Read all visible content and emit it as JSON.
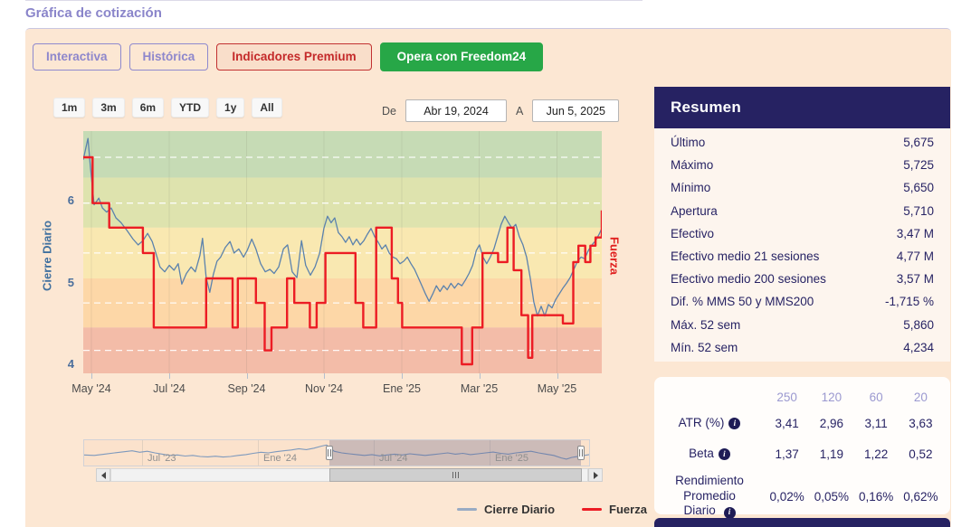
{
  "page": {
    "title": "Gráfica de cotización"
  },
  "toolbar": {
    "buttons": [
      {
        "label": "Interactiva"
      },
      {
        "label": "Histórica"
      },
      {
        "label": "Indicadores Premium"
      },
      {
        "label": "Opera con Freedom24"
      }
    ]
  },
  "chart": {
    "ranges": [
      "1m",
      "3m",
      "6m",
      "YTD",
      "1y",
      "All"
    ],
    "date": {
      "from_label": "De",
      "from": "Abr 19, 2024",
      "to_label": "A",
      "to": "Jun 5, 2025"
    },
    "y_axis_label": "Cierre Diario",
    "y2_axis_label": "Fuerza",
    "navigator_labels": [
      "Jul '23",
      "Ene '24",
      "Jul '24",
      "Ene '25"
    ]
  },
  "chart_data": {
    "type": "line",
    "title": "",
    "x_range": [
      "Abr 19, 2024",
      "Jun 5, 2025"
    ],
    "x_tick_labels": [
      "May '24",
      "Jul '24",
      "Sep '24",
      "Nov '24",
      "Ene '25",
      "Mar '25",
      "May '25"
    ],
    "ylim": [
      3.89,
      6.85
    ],
    "y_ticks": [
      6,
      5,
      4
    ],
    "grid": "dashed-horizontal",
    "legend_position": "bottom",
    "bands": [
      {
        "from": 6.28,
        "to": 6.85,
        "color": "#c6dbb5"
      },
      {
        "from": 5.67,
        "to": 6.28,
        "color": "#dee3ae"
      },
      {
        "from": 5.05,
        "to": 5.67,
        "color": "#f9e8b1"
      },
      {
        "from": 4.45,
        "to": 5.05,
        "color": "#fdd7a7"
      },
      {
        "from": 3.89,
        "to": 4.45,
        "color": "#f3bca8"
      }
    ],
    "dashed_levels": [
      6.53,
      5.97,
      5.36,
      4.75,
      4.17
    ],
    "series": [
      {
        "name": "Cierre Diario",
        "type": "line",
        "color": "#5b82ad",
        "points": [
          [
            0,
            6.5
          ],
          [
            0.009,
            6.76
          ],
          [
            0.014,
            6.4
          ],
          [
            0.021,
            5.95
          ],
          [
            0.03,
            6.03
          ],
          [
            0.037,
            5.91
          ],
          [
            0.045,
            5.86
          ],
          [
            0.054,
            5.91
          ],
          [
            0.063,
            5.79
          ],
          [
            0.073,
            5.73
          ],
          [
            0.084,
            5.64
          ],
          [
            0.096,
            5.53
          ],
          [
            0.106,
            5.46
          ],
          [
            0.115,
            5.51
          ],
          [
            0.124,
            5.6
          ],
          [
            0.133,
            5.5
          ],
          [
            0.14,
            5.36
          ],
          [
            0.148,
            5.19
          ],
          [
            0.157,
            5.13
          ],
          [
            0.166,
            5.21
          ],
          [
            0.175,
            5.15
          ],
          [
            0.183,
            5.23
          ],
          [
            0.19,
            4.98
          ],
          [
            0.199,
            5.11
          ],
          [
            0.208,
            5.19
          ],
          [
            0.216,
            5.13
          ],
          [
            0.225,
            5.33
          ],
          [
            0.23,
            5.54
          ],
          [
            0.237,
            5.06
          ],
          [
            0.244,
            4.88
          ],
          [
            0.251,
            5.1
          ],
          [
            0.258,
            5.26
          ],
          [
            0.265,
            5.31
          ],
          [
            0.274,
            5.43
          ],
          [
            0.283,
            5.5
          ],
          [
            0.291,
            5.36
          ],
          [
            0.3,
            5.41
          ],
          [
            0.309,
            5.31
          ],
          [
            0.316,
            5.39
          ],
          [
            0.325,
            5.53
          ],
          [
            0.333,
            5.41
          ],
          [
            0.342,
            5.23
          ],
          [
            0.351,
            5.13
          ],
          [
            0.36,
            5.16
          ],
          [
            0.368,
            5.11
          ],
          [
            0.377,
            5.19
          ],
          [
            0.386,
            5.41
          ],
          [
            0.394,
            5.46
          ],
          [
            0.403,
            5.13
          ],
          [
            0.412,
            5.06
          ],
          [
            0.421,
            5.51
          ],
          [
            0.429,
            5.21
          ],
          [
            0.438,
            5.09
          ],
          [
            0.447,
            5.19
          ],
          [
            0.456,
            5.36
          ],
          [
            0.464,
            5.66
          ],
          [
            0.471,
            5.81
          ],
          [
            0.478,
            5.73
          ],
          [
            0.485,
            5.79
          ],
          [
            0.492,
            5.61
          ],
          [
            0.499,
            5.56
          ],
          [
            0.506,
            5.49
          ],
          [
            0.513,
            5.56
          ],
          [
            0.52,
            5.46
          ],
          [
            0.527,
            5.53
          ],
          [
            0.534,
            5.46
          ],
          [
            0.541,
            5.51
          ],
          [
            0.548,
            5.59
          ],
          [
            0.555,
            5.66
          ],
          [
            0.562,
            5.56
          ],
          [
            0.569,
            5.49
          ],
          [
            0.576,
            5.41
          ],
          [
            0.583,
            5.46
          ],
          [
            0.59,
            5.36
          ],
          [
            0.597,
            5.31
          ],
          [
            0.604,
            5.29
          ],
          [
            0.611,
            5.23
          ],
          [
            0.618,
            5.26
          ],
          [
            0.625,
            5.31
          ],
          [
            0.632,
            5.23
          ],
          [
            0.639,
            5.16
          ],
          [
            0.646,
            5.06
          ],
          [
            0.653,
            4.96
          ],
          [
            0.66,
            4.86
          ],
          [
            0.667,
            4.77
          ],
          [
            0.674,
            4.86
          ],
          [
            0.681,
            4.96
          ],
          [
            0.688,
            4.89
          ],
          [
            0.695,
            4.96
          ],
          [
            0.702,
            4.91
          ],
          [
            0.709,
            4.99
          ],
          [
            0.716,
            4.93
          ],
          [
            0.723,
            4.99
          ],
          [
            0.73,
            4.96
          ],
          [
            0.737,
            5.03
          ],
          [
            0.744,
            5.11
          ],
          [
            0.751,
            5.21
          ],
          [
            0.758,
            5.39
          ],
          [
            0.764,
            5.46
          ],
          [
            0.771,
            5.31
          ],
          [
            0.778,
            5.23
          ],
          [
            0.785,
            5.31
          ],
          [
            0.792,
            5.41
          ],
          [
            0.799,
            5.56
          ],
          [
            0.806,
            5.71
          ],
          [
            0.813,
            5.81
          ],
          [
            0.82,
            5.73
          ],
          [
            0.827,
            5.66
          ],
          [
            0.834,
            5.71
          ],
          [
            0.841,
            5.56
          ],
          [
            0.848,
            5.46
          ],
          [
            0.855,
            5.31
          ],
          [
            0.862,
            5.06
          ],
          [
            0.869,
            4.76
          ],
          [
            0.876,
            4.59
          ],
          [
            0.883,
            4.71
          ],
          [
            0.89,
            4.59
          ],
          [
            0.897,
            4.73
          ],
          [
            0.904,
            4.69
          ],
          [
            0.911,
            4.79
          ],
          [
            0.918,
            4.86
          ],
          [
            0.925,
            4.93
          ],
          [
            0.932,
            4.99
          ],
          [
            0.939,
            5.06
          ],
          [
            0.946,
            5.16
          ],
          [
            0.953,
            5.26
          ],
          [
            0.96,
            5.31
          ],
          [
            0.967,
            5.29
          ],
          [
            0.974,
            5.39
          ],
          [
            0.981,
            5.46
          ],
          [
            0.988,
            5.51
          ],
          [
            0.995,
            5.59
          ],
          [
            1,
            5.66
          ]
        ]
      },
      {
        "name": "Fuerza",
        "type": "step",
        "color": "#ec1c24",
        "points": [
          [
            0,
            6.53
          ],
          [
            0.018,
            5.97
          ],
          [
            0.05,
            5.67
          ],
          [
            0.115,
            5.36
          ],
          [
            0.136,
            4.45
          ],
          [
            0.237,
            5.05
          ],
          [
            0.288,
            4.45
          ],
          [
            0.298,
            5.05
          ],
          [
            0.333,
            4.75
          ],
          [
            0.35,
            4.17
          ],
          [
            0.363,
            4.45
          ],
          [
            0.393,
            5.05
          ],
          [
            0.407,
            4.75
          ],
          [
            0.437,
            4.45
          ],
          [
            0.45,
            4.75
          ],
          [
            0.467,
            5.36
          ],
          [
            0.525,
            4.75
          ],
          [
            0.54,
            4.45
          ],
          [
            0.565,
            5.67
          ],
          [
            0.595,
            5.05
          ],
          [
            0.607,
            4.75
          ],
          [
            0.615,
            4.45
          ],
          [
            0.73,
            4.0
          ],
          [
            0.75,
            4.45
          ],
          [
            0.77,
            5.36
          ],
          [
            0.8,
            5.25
          ],
          [
            0.818,
            5.67
          ],
          [
            0.83,
            5.15
          ],
          [
            0.845,
            4.6
          ],
          [
            0.858,
            4.08
          ],
          [
            0.866,
            4.6
          ],
          [
            0.925,
            4.5
          ],
          [
            0.945,
            5.25
          ],
          [
            0.955,
            5.45
          ],
          [
            0.968,
            5.25
          ],
          [
            0.978,
            5.45
          ],
          [
            0.988,
            5.55
          ],
          [
            1,
            5.88
          ]
        ]
      }
    ],
    "navigator": {
      "points": [
        [
          0,
          0.42
        ],
        [
          0.02,
          0.4
        ],
        [
          0.04,
          0.46
        ],
        [
          0.06,
          0.52
        ],
        [
          0.08,
          0.58
        ],
        [
          0.095,
          0.62
        ],
        [
          0.11,
          0.55
        ],
        [
          0.125,
          0.6
        ],
        [
          0.14,
          0.52
        ],
        [
          0.155,
          0.46
        ],
        [
          0.17,
          0.4
        ],
        [
          0.185,
          0.42
        ],
        [
          0.2,
          0.37
        ],
        [
          0.215,
          0.4
        ],
        [
          0.23,
          0.35
        ],
        [
          0.245,
          0.33
        ],
        [
          0.26,
          0.36
        ],
        [
          0.275,
          0.32
        ],
        [
          0.29,
          0.35
        ],
        [
          0.305,
          0.4
        ],
        [
          0.32,
          0.44
        ],
        [
          0.335,
          0.5
        ],
        [
          0.35,
          0.55
        ],
        [
          0.365,
          0.52
        ],
        [
          0.38,
          0.58
        ],
        [
          0.395,
          0.62
        ],
        [
          0.41,
          0.66
        ],
        [
          0.425,
          0.72
        ],
        [
          0.44,
          0.68
        ],
        [
          0.455,
          0.75
        ],
        [
          0.47,
          0.85
        ],
        [
          0.48,
          0.9
        ],
        [
          0.486,
          0.8
        ],
        [
          0.495,
          0.6
        ],
        [
          0.51,
          0.52
        ],
        [
          0.525,
          0.48
        ],
        [
          0.54,
          0.44
        ],
        [
          0.555,
          0.4
        ],
        [
          0.57,
          0.44
        ],
        [
          0.585,
          0.38
        ],
        [
          0.6,
          0.42
        ],
        [
          0.615,
          0.46
        ],
        [
          0.63,
          0.42
        ],
        [
          0.645,
          0.48
        ],
        [
          0.66,
          0.44
        ],
        [
          0.675,
          0.4
        ],
        [
          0.69,
          0.44
        ],
        [
          0.705,
          0.48
        ],
        [
          0.72,
          0.52
        ],
        [
          0.735,
          0.46
        ],
        [
          0.75,
          0.5
        ],
        [
          0.765,
          0.44
        ],
        [
          0.78,
          0.48
        ],
        [
          0.795,
          0.52
        ],
        [
          0.81,
          0.56
        ],
        [
          0.825,
          0.5
        ],
        [
          0.84,
          0.46
        ],
        [
          0.855,
          0.52
        ],
        [
          0.87,
          0.56
        ],
        [
          0.885,
          0.6
        ],
        [
          0.9,
          0.52
        ],
        [
          0.915,
          0.46
        ],
        [
          0.93,
          0.4
        ],
        [
          0.945,
          0.28
        ],
        [
          0.955,
          0.22
        ],
        [
          0.965,
          0.3
        ],
        [
          0.975,
          0.34
        ],
        [
          0.985,
          0.38
        ],
        [
          1,
          0.44
        ]
      ],
      "selection": [
        0.486,
        0.984
      ],
      "line_color": "#7d99bd"
    }
  },
  "summary": {
    "title": "Resumen",
    "rows": [
      {
        "label": "Último",
        "value": "5,675"
      },
      {
        "label": "Máximo",
        "value": "5,725"
      },
      {
        "label": "Mínimo",
        "value": "5,650"
      },
      {
        "label": "Apertura",
        "value": "5,710"
      },
      {
        "label": "Efectivo",
        "value": "3,47 M"
      },
      {
        "label": "Efectivo medio 21 sesiones",
        "value": "4,77 M"
      },
      {
        "label": "Efectivo medio 200 sesiones",
        "value": "3,57 M"
      },
      {
        "label": "Dif. % MMS 50 y MMS200",
        "value": "-1,715 %"
      },
      {
        "label": "Máx. 52 sem",
        "value": "5,860"
      },
      {
        "label": "Mín. 52 sem",
        "value": "4,234"
      }
    ]
  },
  "stats": {
    "columns": [
      "250",
      "120",
      "60",
      "20"
    ],
    "rows": [
      {
        "label": "ATR (%)",
        "info": true,
        "values": [
          "3,41",
          "2,96",
          "3,11",
          "3,63"
        ]
      },
      {
        "label": "Beta",
        "info": true,
        "values": [
          "1,37",
          "1,19",
          "1,22",
          "0,52"
        ]
      },
      {
        "label": "Rendimiento Promedio Diario",
        "info": true,
        "values": [
          "0,02%",
          "0,05%",
          "0,16%",
          "0,62%"
        ]
      }
    ]
  },
  "colors": {
    "panel_bg": "#fce7d3",
    "navy": "#262262",
    "accent_purple": "#8e89ce",
    "accent_red": "#c42a2a",
    "accent_green": "#27a747",
    "line_blue": "#5b82ad",
    "line_red": "#ec1c24"
  }
}
